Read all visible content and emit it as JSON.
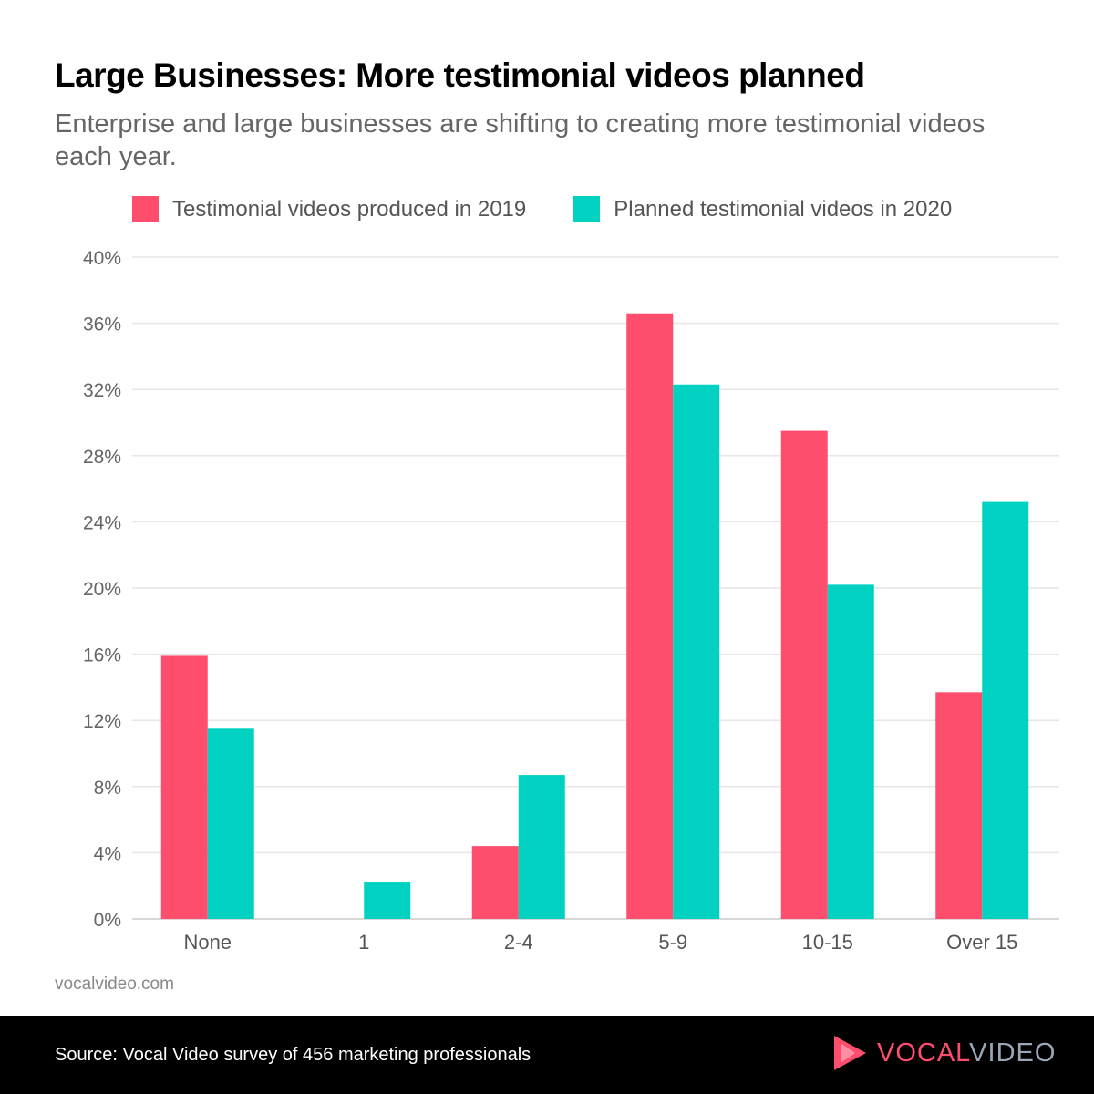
{
  "title": "Large Businesses: More testimonial videos planned",
  "subtitle": "Enterprise and large businesses are shifting to creating more testimonial videos each year.",
  "site": "vocalvideo.com",
  "footer": {
    "source": "Source: Vocal Video survey of 456 marketing professionals",
    "logo_part1": "VOCAL",
    "logo_part2": "VIDEO"
  },
  "colors": {
    "series_2019": "#ff4d6d",
    "series_2020": "#00d1c1",
    "logo_gray": "#9aa5b8"
  },
  "chart_data": {
    "type": "bar",
    "title": "Large Businesses: More testimonial videos planned",
    "xlabel": "",
    "ylabel": "",
    "categories": [
      "None",
      "1",
      "2-4",
      "5-9",
      "10-15",
      "Over 15"
    ],
    "series": [
      {
        "name": "Testimonial videos produced in 2019",
        "values": [
          15.9,
          0,
          4.4,
          36.6,
          29.5,
          13.7
        ]
      },
      {
        "name": "Planned testimonial videos in 2020",
        "values": [
          11.5,
          2.2,
          8.7,
          32.3,
          20.2,
          25.2
        ]
      }
    ],
    "ylim": [
      0,
      40
    ],
    "yticks": [
      "0%",
      "4%",
      "8%",
      "12%",
      "16%",
      "20%",
      "24%",
      "28%",
      "32%",
      "36%",
      "40%"
    ],
    "grid": true,
    "legend": "top"
  }
}
